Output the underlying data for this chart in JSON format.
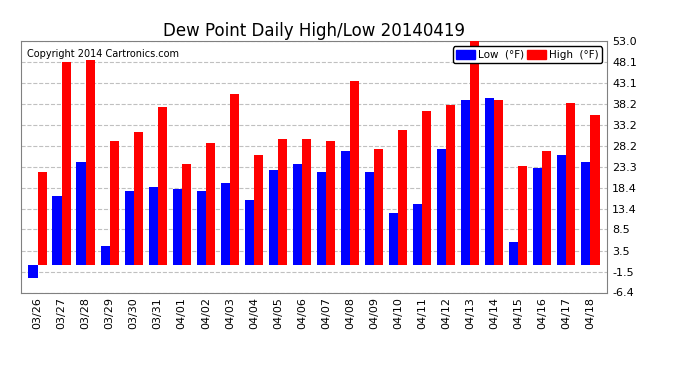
{
  "title": "Dew Point Daily High/Low 20140419",
  "copyright": "Copyright 2014 Cartronics.com",
  "dates": [
    "03/26",
    "03/27",
    "03/28",
    "03/29",
    "03/30",
    "03/31",
    "04/01",
    "04/02",
    "04/03",
    "04/04",
    "04/05",
    "04/06",
    "04/07",
    "04/08",
    "04/09",
    "04/10",
    "04/11",
    "04/12",
    "04/13",
    "04/14",
    "04/15",
    "04/16",
    "04/17",
    "04/18"
  ],
  "high": [
    22.0,
    48.0,
    48.5,
    29.5,
    31.5,
    37.5,
    24.0,
    29.0,
    40.5,
    26.0,
    30.0,
    30.0,
    29.5,
    43.5,
    27.5,
    32.0,
    36.5,
    38.0,
    53.0,
    39.0,
    23.5,
    27.0,
    38.5,
    35.5
  ],
  "low": [
    -3.0,
    16.5,
    24.5,
    4.5,
    17.5,
    18.5,
    18.0,
    17.5,
    19.5,
    15.5,
    22.5,
    24.0,
    22.0,
    27.0,
    22.0,
    12.5,
    14.5,
    27.5,
    39.0,
    39.5,
    5.5,
    23.0,
    26.0,
    24.5
  ],
  "high_color": "#ff0000",
  "low_color": "#0000ff",
  "bg_color": "#ffffff",
  "plot_bg_color": "#ffffff",
  "grid_color": "#c0c0c0",
  "yticks": [
    -6.4,
    -1.5,
    3.5,
    8.5,
    13.4,
    18.4,
    23.3,
    28.2,
    33.2,
    38.2,
    43.1,
    48.1,
    53.0
  ],
  "ylim": [
    -6.4,
    53.0
  ],
  "bar_width": 0.38,
  "title_fontsize": 12,
  "tick_fontsize": 8,
  "copyright_fontsize": 7
}
